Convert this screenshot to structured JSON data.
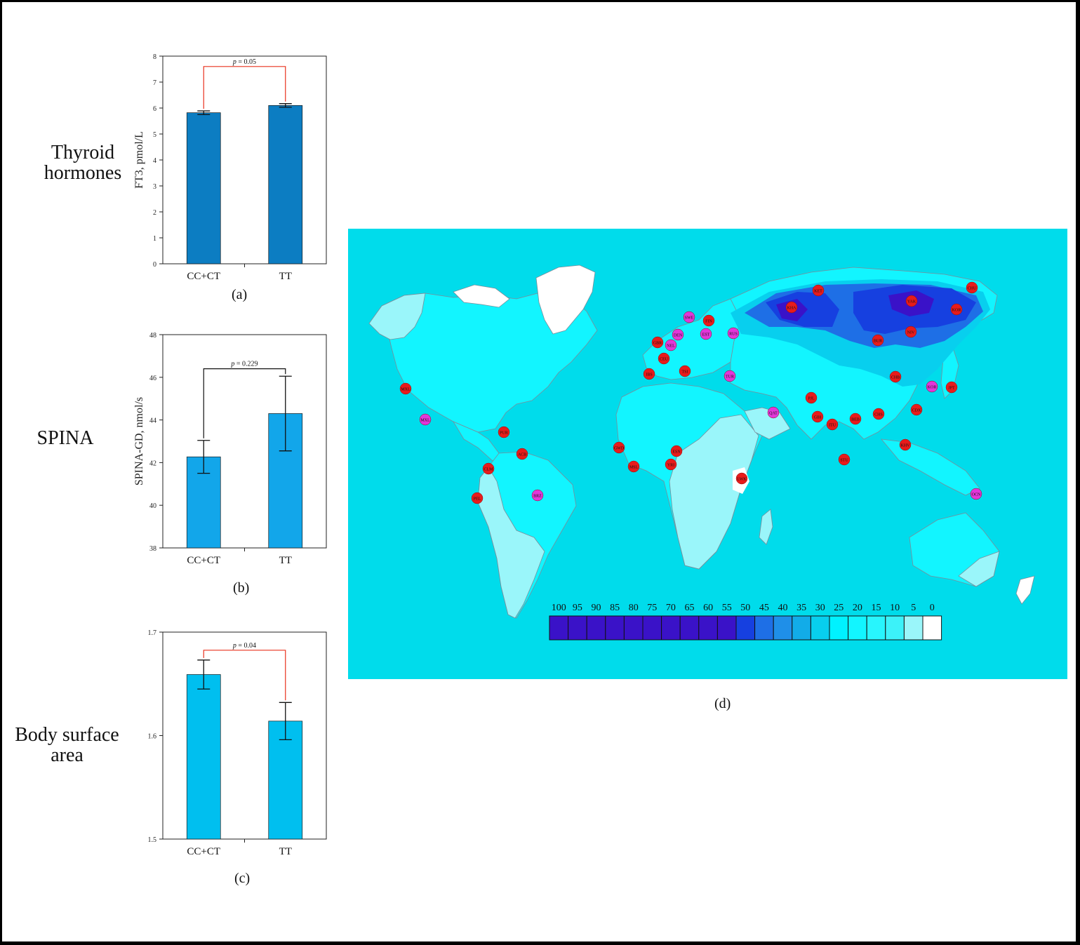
{
  "row_labels": {
    "a": [
      "Thyroid",
      "hormones"
    ],
    "b": [
      "SPINA"
    ],
    "c": [
      "Body surface",
      "area"
    ]
  },
  "chart_data": [
    {
      "id": "a",
      "type": "bar",
      "panel_label": "(a)",
      "categories": [
        "CC+CT",
        "TT"
      ],
      "values": [
        5.82,
        6.1
      ],
      "error": [
        0.07,
        0.07
      ],
      "ylabel": "FT3, pmol/L",
      "ylim": [
        0,
        8
      ],
      "yticks": [
        0,
        1,
        2,
        3,
        4,
        5,
        6,
        7,
        8
      ],
      "bar_color": "#0C7DC2",
      "significance": {
        "text": "p = 0.05",
        "p_symbol": "p",
        "p_value": "= 0.05",
        "color": "#E8321E"
      }
    },
    {
      "id": "b",
      "type": "bar",
      "panel_label": "(b)",
      "categories": [
        "CC+CT",
        "TT"
      ],
      "values": [
        42.27,
        44.3
      ],
      "error": [
        0.77,
        1.75
      ],
      "ylabel": "SPINA-GD, nmol/s",
      "ylim": [
        38,
        48
      ],
      "yticks": [
        38,
        40,
        42,
        44,
        46,
        48
      ],
      "bar_color": "#12A6EA",
      "significance": {
        "text": "p = 0.229",
        "p_symbol": "p",
        "p_value": "= 0.229",
        "color": "#111111"
      }
    },
    {
      "id": "c",
      "type": "bar",
      "panel_label": "(c)",
      "categories": [
        "CC+CT",
        "TT"
      ],
      "values": [
        1.659,
        1.614
      ],
      "error": [
        0.014,
        0.018
      ],
      "ylabel": "",
      "ylim": [
        1.5,
        1.7
      ],
      "yticks": [
        1.5,
        1.6,
        1.7
      ],
      "bar_color": "#00BFEF",
      "significance": {
        "text": "p = 0.04",
        "p_symbol": "p",
        "p_value": "= 0.04",
        "color": "#E8321E"
      }
    },
    {
      "id": "d",
      "type": "heatmap",
      "panel_label": "(d)",
      "description_kind": "world map frequency contour",
      "legend_values": [
        "100",
        "95",
        "90",
        "85",
        "80",
        "75",
        "70",
        "65",
        "60",
        "55",
        "50",
        "45",
        "40",
        "35",
        "30",
        "25",
        "20",
        "15",
        "10",
        "5",
        "0"
      ],
      "legend_colors": [
        "#3A12C8",
        "#3A12C8",
        "#3A12C8",
        "#3A12C8",
        "#3A12C8",
        "#3A12C8",
        "#3A12C8",
        "#3A12C8",
        "#3A12C8",
        "#3A12C8",
        "#1640E0",
        "#1E6FE6",
        "#1F8FE8",
        "#12ACE8",
        "#08CFEE",
        "#00F2FF",
        "#12F5FF",
        "#28F5FD",
        "#3CF2F9",
        "#9AF6FA",
        "#FFFFFF"
      ],
      "population_markers": [
        {
          "code": "MXL",
          "color": "#E81B1B"
        },
        {
          "code": "MXL",
          "color": "#E236D9"
        },
        {
          "code": "PUR",
          "color": "#E81B1B"
        },
        {
          "code": "ACB",
          "color": "#E81B1B"
        },
        {
          "code": "CLM",
          "color": "#E81B1B"
        },
        {
          "code": "PEL",
          "color": "#E81B1B"
        },
        {
          "code": "BRZ",
          "color": "#E236D9"
        },
        {
          "code": "GWD",
          "color": "#E81B1B"
        },
        {
          "code": "MSL",
          "color": "#E81B1B"
        },
        {
          "code": "ESN",
          "color": "#E81B1B"
        },
        {
          "code": "YRI",
          "color": "#E81B1B"
        },
        {
          "code": "LWK",
          "color": "#E81B1B"
        },
        {
          "code": "GBR",
          "color": "#E81B1B"
        },
        {
          "code": "CEU",
          "color": "#E81B1B"
        },
        {
          "code": "IBS",
          "color": "#E81B1B"
        },
        {
          "code": "TSI",
          "color": "#E81B1B"
        },
        {
          "code": "SWE",
          "color": "#E236D9"
        },
        {
          "code": "FIN",
          "color": "#E81B1B"
        },
        {
          "code": "DEN",
          "color": "#E236D9"
        },
        {
          "code": "NEL",
          "color": "#E236D9"
        },
        {
          "code": "EST",
          "color": "#E236D9"
        },
        {
          "code": "RUS",
          "color": "#E236D9"
        },
        {
          "code": "TUR",
          "color": "#E236D9"
        },
        {
          "code": "QAT",
          "color": "#E236D9"
        },
        {
          "code": "KHA",
          "color": "#E81B1B"
        },
        {
          "code": "KET",
          "color": "#E81B1B"
        },
        {
          "code": "BUR",
          "color": "#E81B1B"
        },
        {
          "code": "YAK",
          "color": "#E81B1B"
        },
        {
          "code": "CHU",
          "color": "#E81B1B"
        },
        {
          "code": "KOR",
          "color": "#E81B1B"
        },
        {
          "code": "NIV",
          "color": "#E81B1B"
        },
        {
          "code": "CHB",
          "color": "#E81B1B"
        },
        {
          "code": "KOR",
          "color": "#E236D9"
        },
        {
          "code": "JPT",
          "color": "#E81B1B"
        },
        {
          "code": "PJL",
          "color": "#E81B1B"
        },
        {
          "code": "GIH",
          "color": "#E81B1B"
        },
        {
          "code": "ITU",
          "color": "#E81B1B"
        },
        {
          "code": "BEB",
          "color": "#E81B1B"
        },
        {
          "code": "CHS",
          "color": "#E81B1B"
        },
        {
          "code": "CDX",
          "color": "#E81B1B"
        },
        {
          "code": "STU",
          "color": "#E81B1B"
        },
        {
          "code": "KHV",
          "color": "#E81B1B"
        },
        {
          "code": "OCN",
          "color": "#E236D9"
        }
      ]
    }
  ]
}
